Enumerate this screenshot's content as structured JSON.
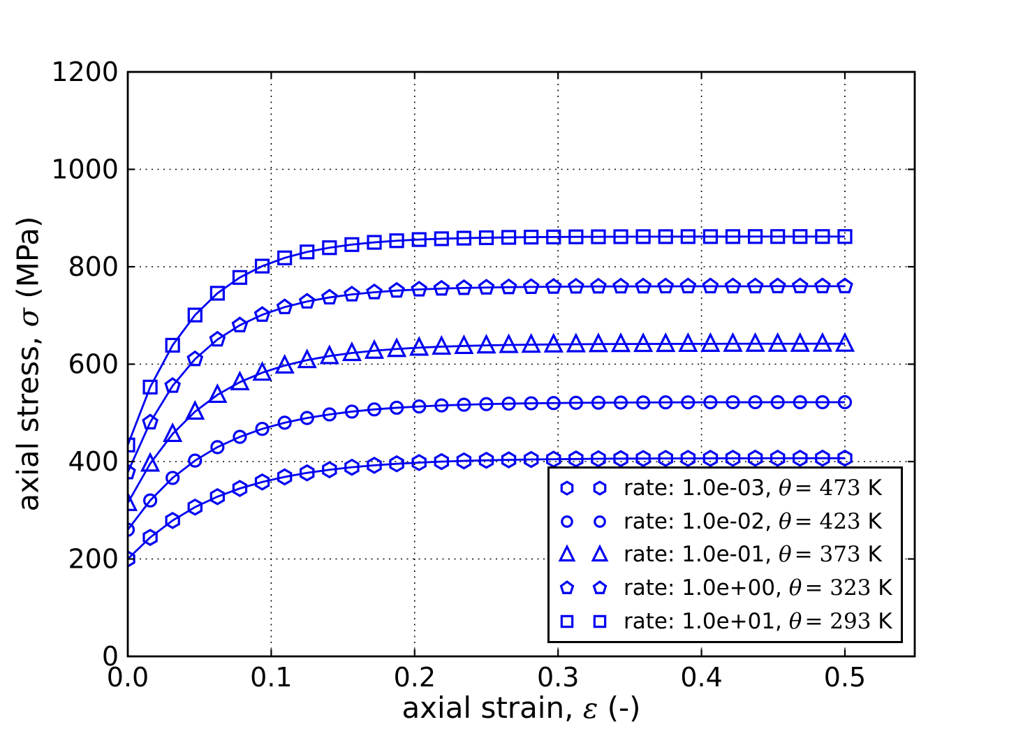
{
  "figure": {
    "background": "#ffffff",
    "xlabel": {
      "prefix": "axial strain, ",
      "symbol": "ε",
      "suffix": " (-)"
    },
    "ylabel": {
      "prefix": "axial stress, ",
      "symbol": "σ",
      "suffix": " (MPa)"
    }
  },
  "legend": {
    "position": "lower right",
    "entries": [
      {
        "marker": "hexagon",
        "prefix": "rate: 1.0e-03, ",
        "symbol": "θ",
        "value": "= 473",
        "suffix": " K"
      },
      {
        "marker": "circle",
        "prefix": "rate: 1.0e-02, ",
        "symbol": "θ",
        "value": "= 423",
        "suffix": " K"
      },
      {
        "marker": "triangle",
        "prefix": "rate: 1.0e-01, ",
        "symbol": "θ",
        "value": "= 373",
        "suffix": " K"
      },
      {
        "marker": "pentagon",
        "prefix": "rate: 1.0e+00, ",
        "symbol": "θ",
        "value": "= 323",
        "suffix": " K"
      },
      {
        "marker": "square",
        "prefix": "rate: 1.0e+01, ",
        "symbol": "θ",
        "value": "= 293",
        "suffix": " K"
      }
    ]
  },
  "chart_data": {
    "type": "line",
    "title": "",
    "xlabel": "axial strain, ε (-)",
    "ylabel": "axial stress, σ (MPa)",
    "xlim": [
      0,
      0.5487
    ],
    "ylim": [
      0,
      1200
    ],
    "x_ticks": [
      0.0,
      0.1,
      0.2,
      0.3,
      0.4,
      0.5
    ],
    "x_tick_labels": [
      "0.0",
      "0.1",
      "0.2",
      "0.3",
      "0.4",
      "0.5"
    ],
    "y_ticks": [
      0,
      200,
      400,
      600,
      800,
      1000,
      1200
    ],
    "y_tick_labels": [
      "0",
      "200",
      "400",
      "600",
      "800",
      "1000",
      "1200"
    ],
    "grid": true,
    "grid_style": "dotted",
    "line_color": "#0000f2",
    "legend_position": "lower right",
    "x": [
      0,
      0.01563,
      0.03125,
      0.04688,
      0.0625,
      0.07813,
      0.09375,
      0.10938,
      0.125,
      0.14063,
      0.15625,
      0.17188,
      0.1875,
      0.20313,
      0.21875,
      0.23438,
      0.25,
      0.26563,
      0.28125,
      0.29688,
      0.3125,
      0.32813,
      0.34375,
      0.35938,
      0.375,
      0.39063,
      0.40625,
      0.42188,
      0.4375,
      0.45313,
      0.46875,
      0.48438,
      0.5
    ],
    "series": [
      {
        "name": "rate: 1.0e-03, θ=473 K",
        "rate": "1.0e-03",
        "temperature_K": 473,
        "marker": "hexagon",
        "values": [
          200,
          244.2,
          279,
          306.4,
          327.9,
          344.8,
          358.1,
          368.5,
          376.8,
          383.2,
          388.3,
          392.3,
          395.4,
          397.9,
          399.9,
          401.4,
          402.6,
          403.5,
          404.3,
          404.8,
          405.3,
          405.7,
          406,
          406.2,
          406.4,
          406.5,
          406.6,
          406.7,
          406.8,
          406.8,
          406.8,
          406.9,
          406.9
        ]
      },
      {
        "name": "rate: 1.0e-02, θ=423 K",
        "rate": "1.0e-02",
        "temperature_K": 423,
        "marker": "circle",
        "values": [
          260,
          320.1,
          366.4,
          402,
          429.6,
          450.7,
          467.1,
          479.7,
          489.4,
          496.8,
          502.6,
          507.1,
          510.5,
          513.1,
          515.2,
          516.7,
          517.9,
          518.9,
          519.6,
          520.1,
          520.6,
          520.9,
          521.2,
          521.3,
          521.5,
          521.6,
          521.7,
          521.8,
          521.8,
          521.9,
          521.9,
          521.9,
          521.9
        ]
      },
      {
        "name": "rate: 1.0e-01, θ=373 K",
        "rate": "1.0e-01",
        "temperature_K": 373,
        "marker": "triangle",
        "values": [
          315,
          395.9,
          456.7,
          502.5,
          537,
          563,
          582.5,
          597.2,
          608.3,
          616.6,
          622.9,
          627.6,
          631.2,
          633.9,
          635.9,
          637.4,
          638.5,
          639.4,
          640,
          640.5,
          640.9,
          641.2,
          641.4,
          641.5,
          641.6,
          641.7,
          641.8,
          641.9,
          641.9,
          641.9,
          641.9,
          642,
          642
        ]
      },
      {
        "name": "rate: 1.0e+00, θ=323 K",
        "rate": "1.0e+00",
        "temperature_K": 323,
        "marker": "pentagon",
        "values": [
          378,
          480.5,
          555.5,
          610.4,
          650.6,
          679.9,
          701.4,
          717.1,
          728.6,
          737,
          743.2,
          747.7,
          751,
          753.4,
          755.2,
          756.5,
          757.4,
          758.1,
          758.6,
          759,
          759.3,
          759.5,
          759.6,
          759.7,
          759.8,
          759.9,
          759.9,
          759.9,
          759.9,
          760,
          760,
          760,
          760
        ]
      },
      {
        "name": "rate: 1.0e+01, θ=293 K",
        "rate": "1.0e+01",
        "temperature_K": 293,
        "marker": "square",
        "values": [
          434,
          552.9,
          638.8,
          700.9,
          745.6,
          778,
          801.3,
          818.2,
          830.4,
          839.1,
          845.5,
          850.1,
          853.4,
          855.8,
          857.5,
          858.7,
          859.6,
          860.3,
          860.8,
          861.1,
          861.4,
          861.5,
          861.7,
          861.8,
          861.8,
          861.9,
          861.9,
          861.9,
          862,
          862,
          862,
          862,
          862
        ]
      }
    ]
  }
}
